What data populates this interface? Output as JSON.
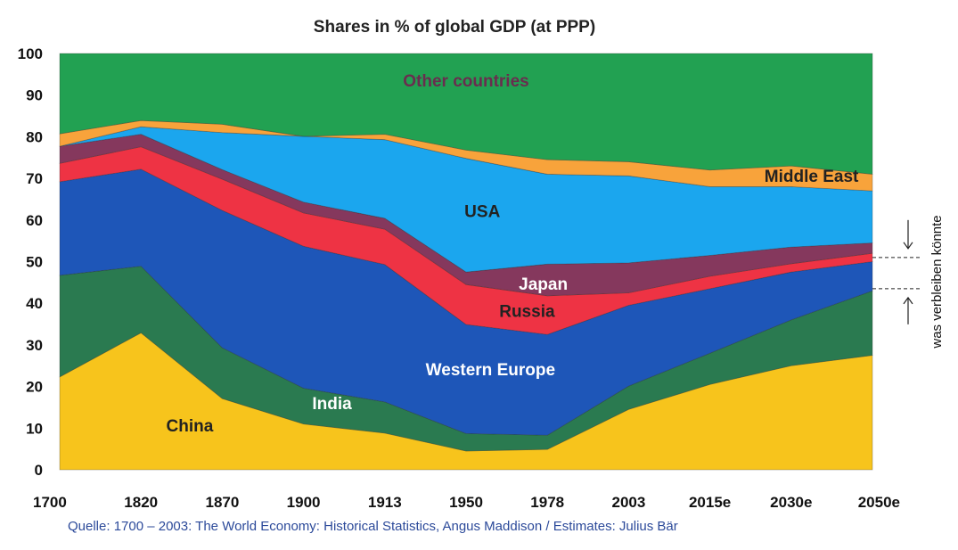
{
  "source_note": "Quelle: 1700 – 2003: The World Economy: Historical Statistics, Angus Maddison / Estimates: Julius Bär",
  "annotation": {
    "text": "was verbleiben könnte",
    "range": [
      43.5,
      51
    ]
  },
  "chart_data": {
    "type": "area",
    "stacked": true,
    "title": "Shares in % of global GDP (at PPP)",
    "xlabel": "",
    "ylabel": "",
    "categories": [
      "1700",
      "1820",
      "1870",
      "1900",
      "1913",
      "1950",
      "1978",
      "2003",
      "2015e",
      "2030e",
      "2050e"
    ],
    "ylim": [
      0,
      100
    ],
    "yticks": [
      0,
      10,
      20,
      30,
      40,
      50,
      60,
      70,
      80,
      90,
      100
    ],
    "grid": false,
    "legend": "none",
    "series": [
      {
        "name": "China",
        "color": "#f7c41c",
        "label_color": "#222222",
        "values": [
          22.3,
          32.9,
          17.1,
          11.0,
          8.8,
          4.5,
          4.9,
          14.5,
          20.5,
          25.0,
          27.5
        ]
      },
      {
        "name": "India",
        "color": "#2a7a50",
        "label_color": "#ffffff",
        "values": [
          24.4,
          16.0,
          12.2,
          8.6,
          7.5,
          4.2,
          3.4,
          5.6,
          7.5,
          11.0,
          15.5
        ]
      },
      {
        "name": "Western Europe",
        "color": "#1e56b8",
        "label_color": "#ffffff",
        "values": [
          22.5,
          23.3,
          33.0,
          34.1,
          33.0,
          26.2,
          24.2,
          19.4,
          15.5,
          11.5,
          7.0
        ]
      },
      {
        "name": "Russia",
        "color": "#ee3344",
        "label_color": "#222222",
        "values": [
          4.4,
          5.4,
          7.5,
          8.0,
          8.5,
          9.6,
          9.3,
          3.0,
          3.0,
          2.0,
          2.0
        ]
      },
      {
        "name": "Japan",
        "color": "#85385d",
        "label_color": "#ffffff",
        "values": [
          4.1,
          3.0,
          2.3,
          2.6,
          2.6,
          3.0,
          7.6,
          7.2,
          5.0,
          4.0,
          2.5
        ]
      },
      {
        "name": "USA",
        "color": "#1ba6ee",
        "label_color": "#222222",
        "values": [
          0.0,
          1.8,
          8.9,
          15.8,
          18.9,
          27.3,
          21.6,
          20.9,
          16.5,
          14.5,
          12.5
        ]
      },
      {
        "name": "Middle East",
        "color": "#f8a33b",
        "label_color": "#222222",
        "values": [
          3.0,
          1.5,
          2.0,
          0.0,
          1.3,
          2.0,
          3.5,
          3.4,
          4.0,
          5.0,
          4.0
        ]
      },
      {
        "name": "Other countries",
        "color": "#22a152",
        "label_color": "#6a2d4f",
        "values": [
          19.3,
          16.1,
          17.0,
          19.9,
          19.4,
          23.2,
          25.5,
          26.0,
          28.0,
          27.0,
          29.0
        ]
      }
    ]
  }
}
